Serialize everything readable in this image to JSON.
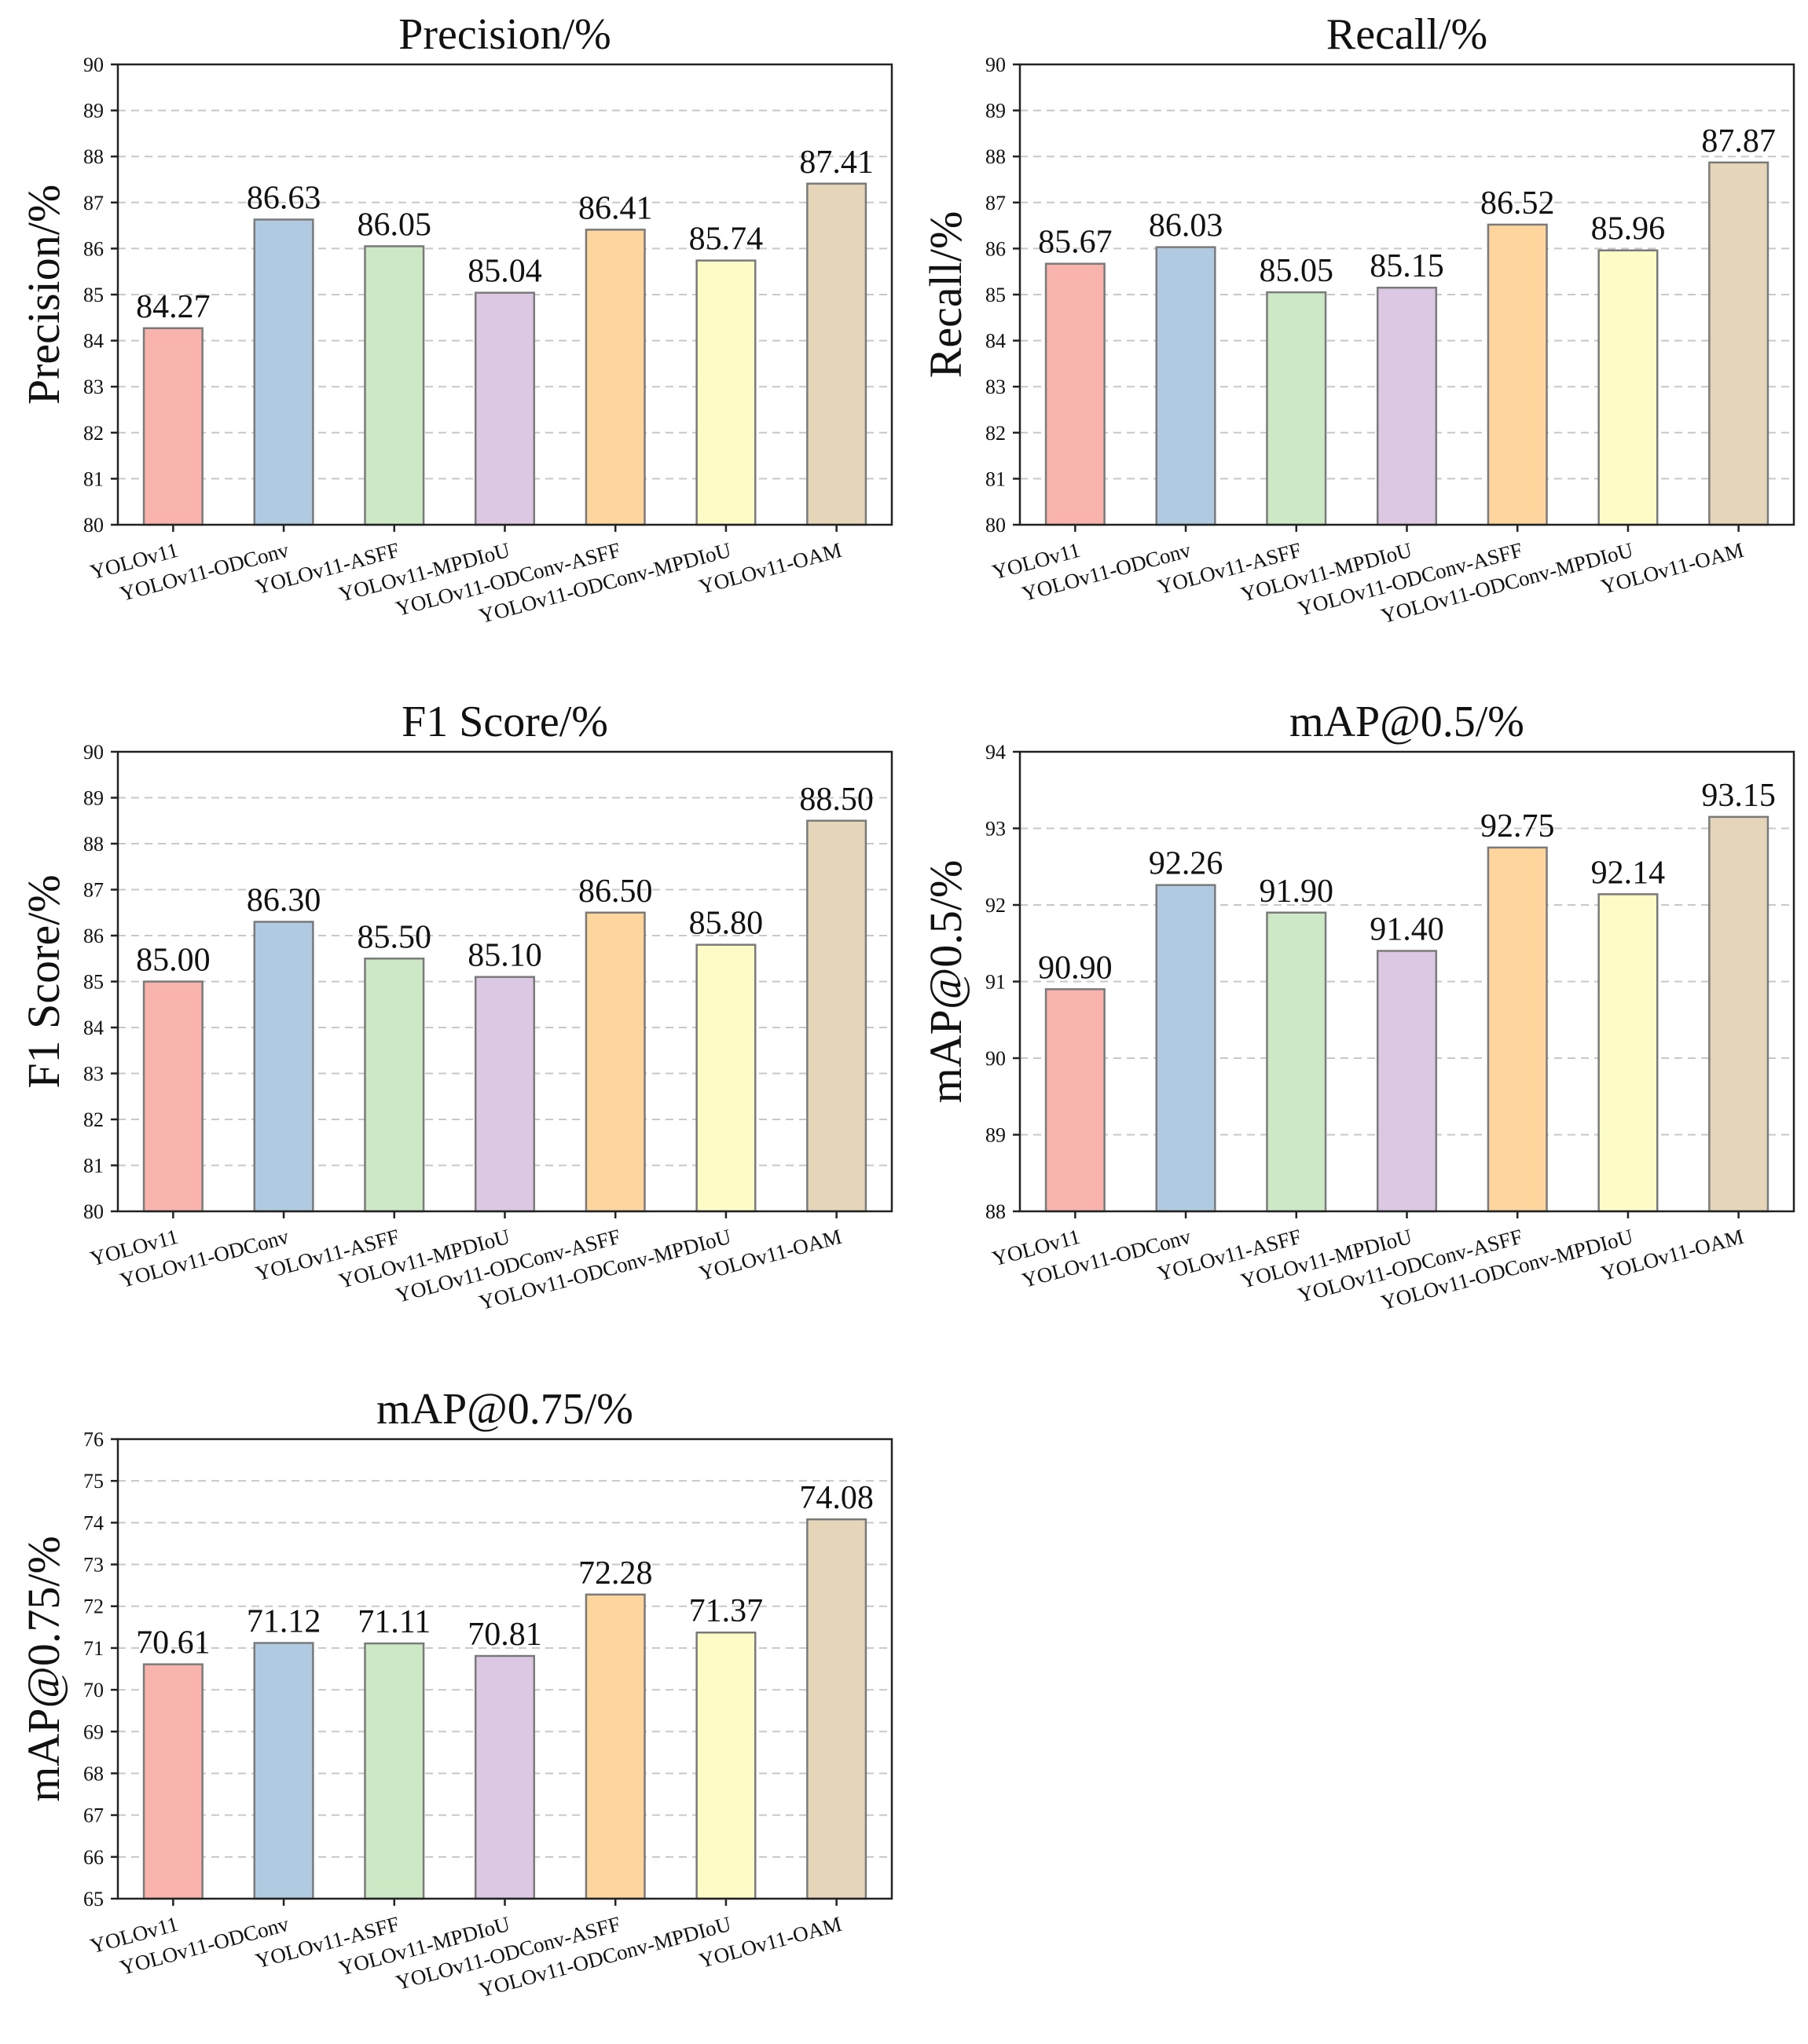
{
  "figure": {
    "bar_colors": [
      "#f9b3ad",
      "#b0cbe1",
      "#cce8c5",
      "#dcc8e2",
      "#fdd59d",
      "#fdfcc6",
      "#e5d5b9"
    ],
    "bar_edge_color": "#7a7a7a",
    "grid_color": "#c8c8c8"
  },
  "chart_data": [
    {
      "type": "bar",
      "title": "Precision/%",
      "xlabel": "",
      "ylabel": "Precision/%",
      "categories": [
        "YOLOv11",
        "YOLOv11-ODConv",
        "YOLOv11-ASFF",
        "YOLOv11-MPDIoU",
        "YOLOv11-ODConv-ASFF",
        "YOLOv11-ODConv-MPDIoU",
        "YOLOv11-OAM"
      ],
      "values": [
        84.27,
        86.63,
        86.05,
        85.04,
        86.41,
        85.74,
        87.41
      ],
      "value_labels": [
        "84.27",
        "86.63",
        "86.05",
        "85.04",
        "86.41",
        "85.74",
        "87.41"
      ],
      "ylim": [
        80,
        90
      ],
      "yticks": [
        80,
        81,
        82,
        83,
        84,
        85,
        86,
        87,
        88,
        89,
        90
      ],
      "grid": true
    },
    {
      "type": "bar",
      "title": "Recall/%",
      "xlabel": "",
      "ylabel": "Recall/%",
      "categories": [
        "YOLOv11",
        "YOLOv11-ODConv",
        "YOLOv11-ASFF",
        "YOLOv11-MPDIoU",
        "YOLOv11-ODConv-ASFF",
        "YOLOv11-ODConv-MPDIoU",
        "YOLOv11-OAM"
      ],
      "values": [
        85.67,
        86.03,
        85.05,
        85.15,
        86.52,
        85.96,
        87.87
      ],
      "value_labels": [
        "85.67",
        "86.03",
        "85.05",
        "85.15",
        "86.52",
        "85.96",
        "87.87"
      ],
      "ylim": [
        80,
        90
      ],
      "yticks": [
        80,
        81,
        82,
        83,
        84,
        85,
        86,
        87,
        88,
        89,
        90
      ],
      "grid": true
    },
    {
      "type": "bar",
      "title": "F1 Score/%",
      "xlabel": "",
      "ylabel": "F1 Score/%",
      "categories": [
        "YOLOv11",
        "YOLOv11-ODConv",
        "YOLOv11-ASFF",
        "YOLOv11-MPDIoU",
        "YOLOv11-ODConv-ASFF",
        "YOLOv11-ODConv-MPDIoU",
        "YOLOv11-OAM"
      ],
      "values": [
        85.0,
        86.3,
        85.5,
        85.1,
        86.5,
        85.8,
        88.5
      ],
      "value_labels": [
        "85.00",
        "86.30",
        "85.50",
        "85.10",
        "86.50",
        "85.80",
        "88.50"
      ],
      "ylim": [
        80,
        90
      ],
      "yticks": [
        80,
        81,
        82,
        83,
        84,
        85,
        86,
        87,
        88,
        89,
        90
      ],
      "grid": true
    },
    {
      "type": "bar",
      "title": "mAP@0.5/%",
      "xlabel": "",
      "ylabel": "mAP@0.5/%",
      "categories": [
        "YOLOv11",
        "YOLOv11-ODConv",
        "YOLOv11-ASFF",
        "YOLOv11-MPDIoU",
        "YOLOv11-ODConv-ASFF",
        "YOLOv11-ODConv-MPDIoU",
        "YOLOv11-OAM"
      ],
      "values": [
        90.9,
        92.26,
        91.9,
        91.4,
        92.75,
        92.14,
        93.15
      ],
      "value_labels": [
        "90.90",
        "92.26",
        "91.90",
        "91.40",
        "92.75",
        "92.14",
        "93.15"
      ],
      "ylim": [
        88,
        94
      ],
      "yticks": [
        88,
        89,
        90,
        91,
        92,
        93,
        94
      ],
      "grid": true
    },
    {
      "type": "bar",
      "title": "mAP@0.75/%",
      "xlabel": "",
      "ylabel": "mAP@0.75/%",
      "categories": [
        "YOLOv11",
        "YOLOv11-ODConv",
        "YOLOv11-ASFF",
        "YOLOv11-MPDIoU",
        "YOLOv11-ODConv-ASFF",
        "YOLOv11-ODConv-MPDIoU",
        "YOLOv11-OAM"
      ],
      "values": [
        70.61,
        71.12,
        71.11,
        70.81,
        72.28,
        71.37,
        74.08
      ],
      "value_labels": [
        "70.61",
        "71.12",
        "71.11",
        "70.81",
        "72.28",
        "71.37",
        "74.08"
      ],
      "ylim": [
        65,
        76
      ],
      "yticks": [
        65,
        66,
        67,
        68,
        69,
        70,
        71,
        72,
        73,
        74,
        75,
        76
      ],
      "grid": true
    }
  ]
}
